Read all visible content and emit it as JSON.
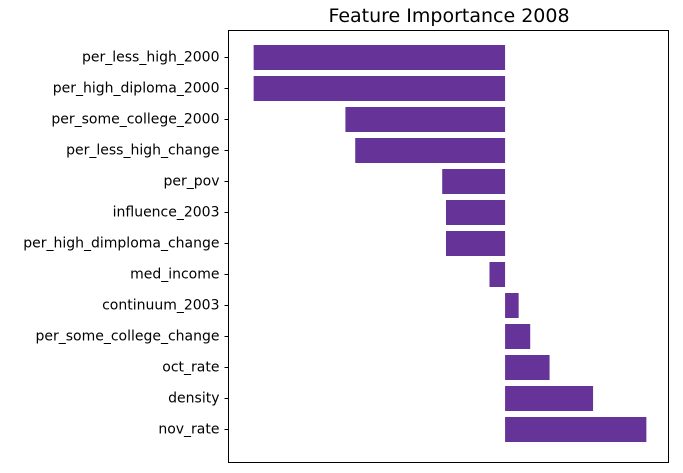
{
  "chart_data": {
    "type": "bar",
    "orientation": "horizontal",
    "title": "Feature Importance 2008",
    "xlabel": "",
    "ylabel": "",
    "x_ticks_visible": false,
    "grid": false,
    "legend": "none",
    "color": "#663399",
    "categories": [
      "per_less_high_2000",
      "per_high_diploma_2000",
      "per_some_college_2000",
      "per_less_high_change",
      "per_pov",
      "influence_2003",
      "per_high_dimploma_change",
      "med_income",
      "continuum_2003",
      "per_some_college_change",
      "oct_rate",
      "density",
      "nov_rate"
    ],
    "values": [
      -1.0,
      -1.0,
      -0.635,
      -0.596,
      -0.25,
      -0.235,
      -0.235,
      -0.062,
      0.054,
      0.1,
      0.177,
      0.35,
      0.562
    ],
    "xlim": [
      -1.1,
      0.65
    ]
  }
}
